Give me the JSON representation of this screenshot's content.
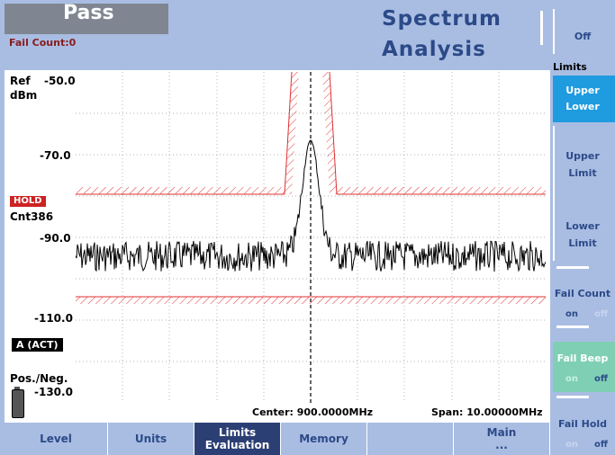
{
  "header": {
    "status": "Pass",
    "fail_count": "Fail Count:0",
    "title_line1": "Spectrum",
    "title_line2": "Analysis"
  },
  "plot": {
    "ref_label": "Ref",
    "unit": "dBm",
    "y_ticks": [
      "-50.0",
      "-70.0",
      "-90.0",
      "-110.0",
      "-130.0"
    ],
    "hold": "HOLD",
    "count": "Cnt386",
    "trace": "A (ACT)",
    "detector": "Pos./Neg.",
    "center": "Center: 900.0000MHz",
    "span": "Span: 10.00000MHz"
  },
  "right_menu": {
    "off": "Off",
    "limits": "Limits",
    "upper_lower_1": "Upper",
    "upper_lower_2": "Lower",
    "upper_limit_1": "Upper",
    "upper_limit_2": "Limit",
    "lower_limit_1": "Lower",
    "lower_limit_2": "Limit",
    "fail_count": "Fail Count",
    "fail_count_on": "on",
    "fail_count_off": "off",
    "fail_beep": "Fail Beep",
    "fail_beep_on": "on",
    "fail_beep_off": "off",
    "fail_hold": "Fail Hold",
    "fail_hold_on": "on",
    "fail_hold_off": "off"
  },
  "bottom_menu": {
    "level": "Level",
    "units": "Units",
    "limits_1": "Limits",
    "limits_2": "Evaluation",
    "memory": "Memory",
    "main_1": "Main",
    "main_2": "..."
  },
  "colors": {
    "background": "#a9bde3",
    "accent": "#2c4a88",
    "limit_line": "#e03030",
    "selected": "#1f9be0",
    "beep_selected": "#7fcfb5"
  }
}
